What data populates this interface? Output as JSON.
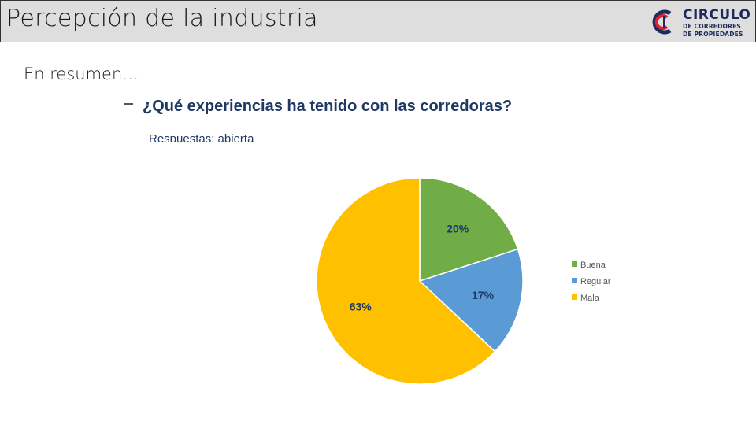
{
  "header": {
    "title": "Percepción de la industria",
    "logo": {
      "line1": "CIRCULO",
      "line2": "DE CORREDORES",
      "line3": "DE PROPIEDADES",
      "colors": {
        "blue": "#1f2a5c",
        "red": "#d9232e"
      }
    }
  },
  "slide": {
    "subtitle": "En resumen…",
    "question": "¿Qué experiencias ha tenido con las corredoras?",
    "responses_note": "Respuestas: abierta"
  },
  "chart_data": {
    "type": "pie",
    "title": "",
    "categories": [
      "Buena",
      "Regular",
      "Mala"
    ],
    "values": [
      20,
      17,
      63
    ],
    "labels": [
      "20%",
      "17%",
      "63%"
    ],
    "colors": [
      "#70ad47",
      "#5b9bd5",
      "#ffc000"
    ],
    "start_angle_deg": 0,
    "direction": "clockwise",
    "legend": {
      "position": "right",
      "entries": [
        "Buena",
        "Regular",
        "Mala"
      ]
    }
  }
}
